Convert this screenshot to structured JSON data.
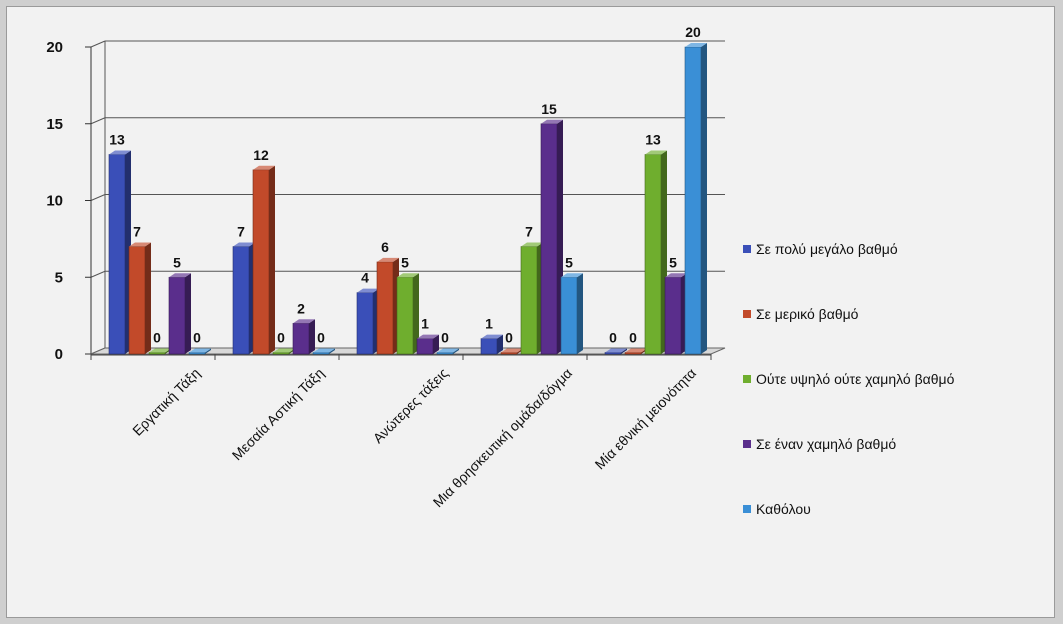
{
  "chart_data": {
    "type": "bar",
    "title": "",
    "xlabel": "",
    "ylabel": "",
    "ylim": [
      0,
      20
    ],
    "yticks": [
      "0",
      "5",
      "10",
      "15",
      "20"
    ],
    "grid": true,
    "legend_position": "right",
    "categories": [
      "Εργατική Τάξη",
      "Μεσαία Αστική Τάξη",
      "Ανώτερες τάξεις",
      "Μια θρησκευτική ομάδα/δόγμα",
      "Μία εθνική μειονότητα"
    ],
    "series": [
      {
        "name": "Σε πολύ μεγάλο βαθμό",
        "color": "#3a4fb8",
        "values": [
          13,
          7,
          4,
          1,
          0
        ]
      },
      {
        "name": "Σε μερικό βαθμό",
        "color": "#c24a2a",
        "values": [
          7,
          12,
          6,
          0,
          0
        ]
      },
      {
        "name": "Ούτε υψηλό ούτε χαμηλό βαθμό",
        "color": "#6fae2e",
        "values": [
          0,
          0,
          5,
          7,
          13
        ]
      },
      {
        "name": "Σε έναν χαμηλό βαθμό",
        "color": "#5a2e8c",
        "values": [
          5,
          2,
          1,
          15,
          5
        ]
      },
      {
        "name": "Καθόλου",
        "color": "#3a8fd6",
        "values": [
          0,
          0,
          0,
          5,
          20
        ]
      }
    ]
  }
}
